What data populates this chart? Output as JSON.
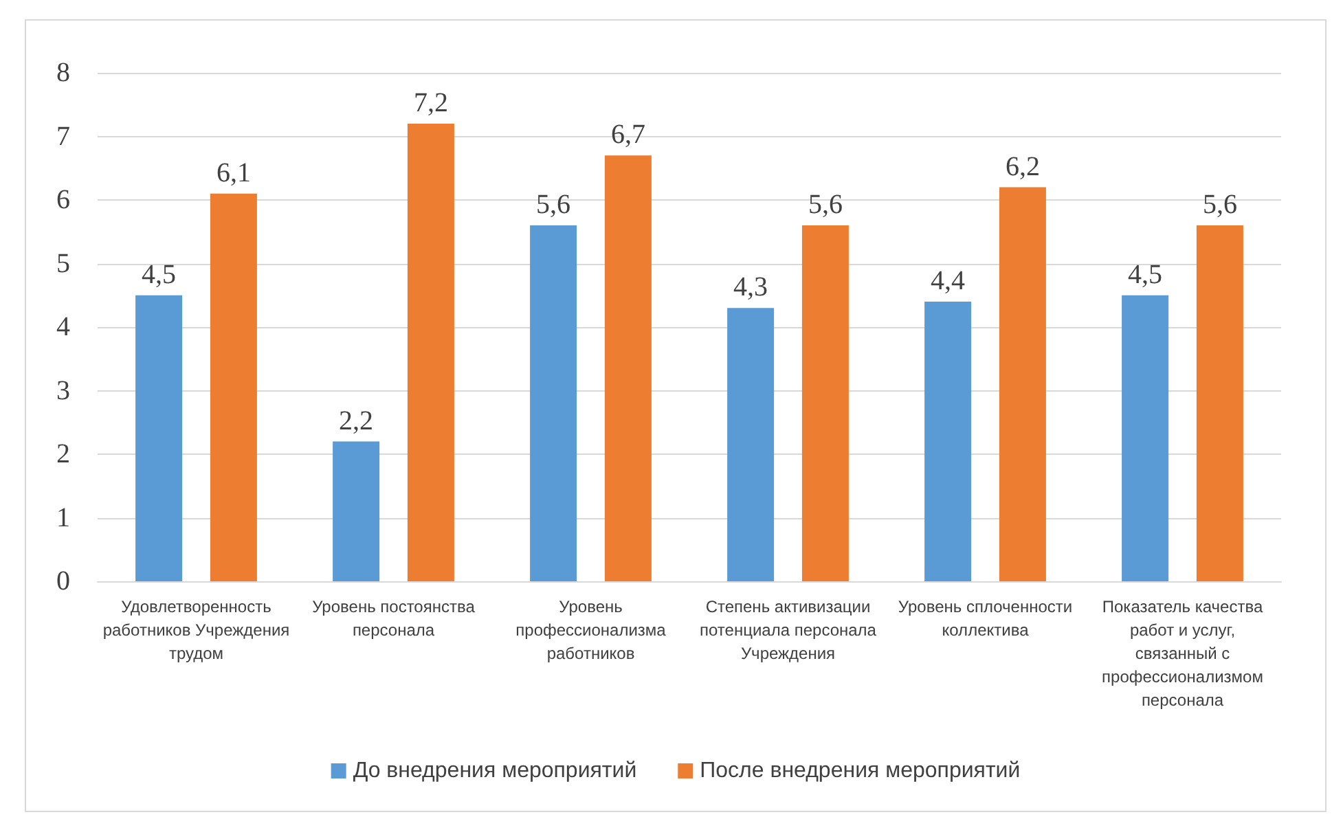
{
  "chart_data": {
    "type": "bar",
    "categories": [
      "Удовлетворенность\nработников Учреждения\nтрудом",
      "Уровень постоянства\nперсонала",
      "Уровень\nпрофессионализма\nработников",
      "Степень активизации\nпотенциала персонала\nУчреждения",
      "Уровень сплоченности\nколлектива",
      "Показатель качества\nработ и услуг,\nсвязанный с\nпрофессионализмом\nперсонала"
    ],
    "series": [
      {
        "name": "До внедрения мероприятий",
        "color": "#5b9bd5",
        "values": [
          4.5,
          2.2,
          5.6,
          4.3,
          4.4,
          4.5
        ],
        "value_labels": [
          "4,5",
          "2,2",
          "5,6",
          "4,3",
          "4,4",
          "4,5"
        ]
      },
      {
        "name": "После внедрения мероприятий",
        "color": "#ed7d31",
        "values": [
          6.1,
          7.2,
          6.7,
          5.6,
          6.2,
          5.6
        ],
        "value_labels": [
          "6,1",
          "7,2",
          "6,7",
          "5,6",
          "6,2",
          "5,6"
        ]
      }
    ],
    "ylim": [
      0,
      8
    ],
    "yticks": [
      0,
      1,
      2,
      3,
      4,
      5,
      6,
      7,
      8
    ],
    "grid": "y",
    "legend": "bottom"
  }
}
